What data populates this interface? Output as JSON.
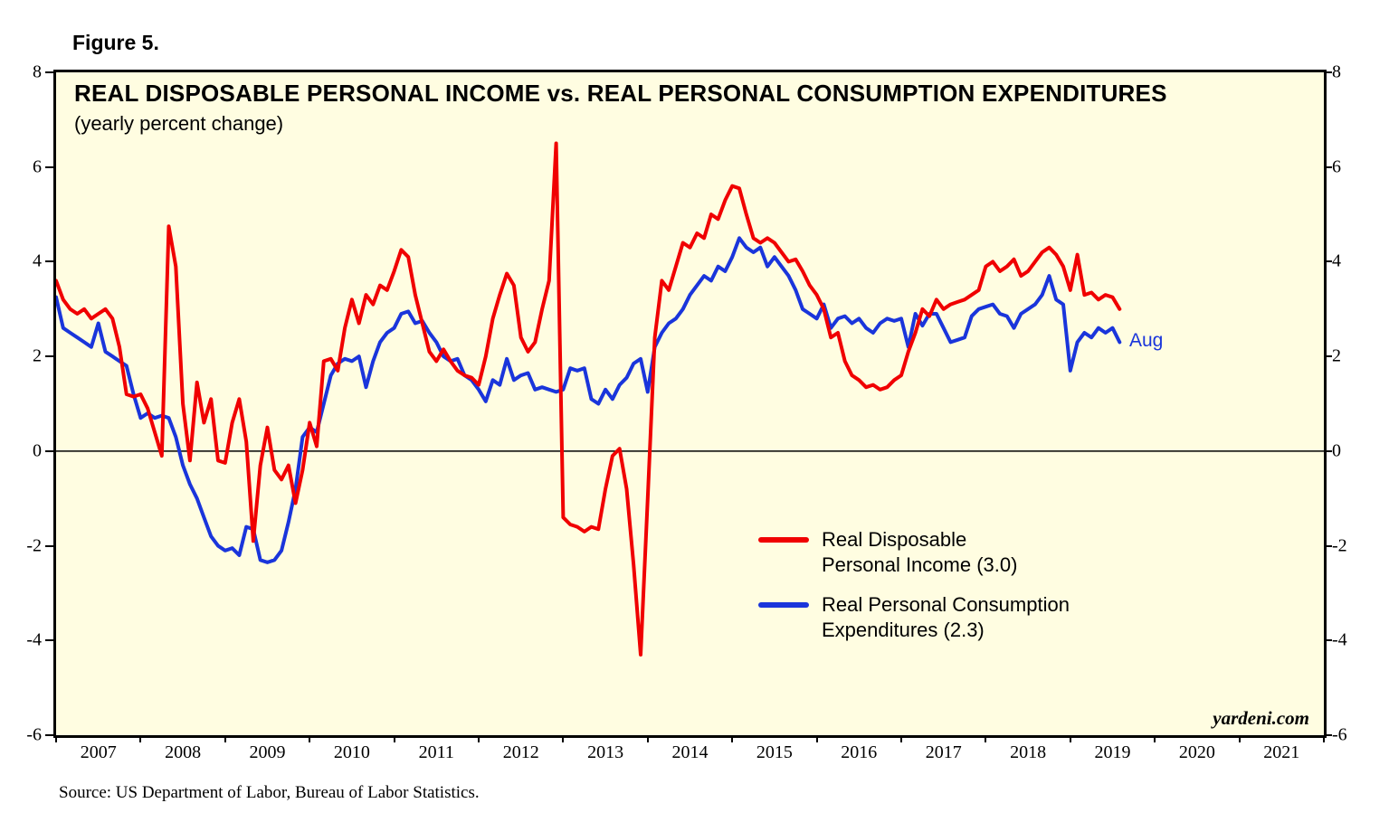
{
  "figure_label": "Figure 5.",
  "chart": {
    "title": "REAL DISPOSABLE PERSONAL INCOME vs. REAL PERSONAL CONSUMPTION EXPENDITURES",
    "subtitle": "(yearly percent change)",
    "watermark": "yardeni.com",
    "plot_background": "#fffde1",
    "annotation": {
      "text": "Aug",
      "color": "#1a35db"
    },
    "legend": [
      {
        "lines": [
          "Real Disposable",
          "Personal Income (3.0)"
        ],
        "color": "#f00000"
      },
      {
        "lines": [
          "Real Personal Consumption",
          "Expenditures (2.3)"
        ],
        "color": "#1a35db"
      }
    ]
  },
  "source": "Source: US Department of Labor, Bureau of Labor Statistics.",
  "chart_data": {
    "type": "line",
    "frequency": "monthly",
    "x_start": "2007-01",
    "x_end": "2019-08",
    "x_axis_range": [
      2007,
      2022
    ],
    "ylim": [
      -6,
      8
    ],
    "yticks": [
      8,
      6,
      4,
      2,
      0,
      -2,
      -4,
      -6
    ],
    "xtick_labels": [
      "2007",
      "2008",
      "2009",
      "2010",
      "2011",
      "2012",
      "2013",
      "2014",
      "2015",
      "2016",
      "2017",
      "2018",
      "2019",
      "2020",
      "2021"
    ],
    "zero_line": true,
    "legend_position": "inside-lower-right",
    "grid": false,
    "series": [
      {
        "name": "Real Disposable Personal Income",
        "latest_value": 3.0,
        "color": "#f00000",
        "values": [
          3.6,
          3.2,
          3.0,
          2.9,
          3.0,
          2.8,
          2.9,
          3.0,
          2.8,
          2.2,
          1.2,
          1.15,
          1.2,
          0.9,
          0.4,
          -0.1,
          4.75,
          3.9,
          1.0,
          -0.2,
          1.45,
          0.6,
          1.1,
          -0.2,
          -0.25,
          0.6,
          1.1,
          0.2,
          -1.9,
          -0.3,
          0.5,
          -0.4,
          -0.6,
          -0.3,
          -1.1,
          -0.4,
          0.6,
          0.1,
          1.9,
          1.95,
          1.7,
          2.6,
          3.2,
          2.7,
          3.3,
          3.1,
          3.5,
          3.4,
          3.8,
          4.25,
          4.1,
          3.3,
          2.7,
          2.1,
          1.9,
          2.15,
          1.9,
          1.7,
          1.6,
          1.55,
          1.4,
          2.0,
          2.8,
          3.3,
          3.75,
          3.5,
          2.4,
          2.1,
          2.3,
          3.0,
          3.6,
          6.5,
          -1.4,
          -1.55,
          -1.6,
          -1.7,
          -1.6,
          -1.65,
          -0.8,
          -0.1,
          0.05,
          -0.8,
          -2.4,
          -4.3,
          -1.0,
          2.4,
          3.6,
          3.4,
          3.9,
          4.4,
          4.3,
          4.6,
          4.5,
          5.0,
          4.9,
          5.3,
          5.6,
          5.55,
          5.0,
          4.5,
          4.4,
          4.5,
          4.4,
          4.2,
          4.0,
          4.05,
          3.8,
          3.5,
          3.3,
          3.0,
          2.4,
          2.5,
          1.9,
          1.6,
          1.5,
          1.35,
          1.4,
          1.3,
          1.35,
          1.5,
          1.6,
          2.1,
          2.5,
          3.0,
          2.85,
          3.2,
          3.0,
          3.1,
          3.15,
          3.2,
          3.3,
          3.4,
          3.9,
          4.0,
          3.8,
          3.9,
          4.05,
          3.7,
          3.8,
          4.0,
          4.2,
          4.3,
          4.15,
          3.9,
          3.4,
          4.15,
          3.3,
          3.35,
          3.2,
          3.3,
          3.25,
          3.0
        ]
      },
      {
        "name": "Real Personal Consumption Expenditures",
        "latest_value": 2.3,
        "color": "#1a35db",
        "values": [
          3.25,
          2.6,
          2.5,
          2.4,
          2.3,
          2.2,
          2.7,
          2.1,
          2.0,
          1.9,
          1.8,
          1.2,
          0.7,
          0.8,
          0.7,
          0.75,
          0.7,
          0.3,
          -0.3,
          -0.7,
          -1.0,
          -1.4,
          -1.8,
          -2.0,
          -2.1,
          -2.05,
          -2.2,
          -1.6,
          -1.65,
          -2.3,
          -2.35,
          -2.3,
          -2.1,
          -1.5,
          -0.8,
          0.3,
          0.5,
          0.4,
          1.0,
          1.6,
          1.85,
          1.95,
          1.9,
          2.0,
          1.35,
          1.9,
          2.3,
          2.5,
          2.6,
          2.9,
          2.95,
          2.7,
          2.75,
          2.5,
          2.3,
          2.0,
          1.9,
          1.95,
          1.6,
          1.5,
          1.3,
          1.05,
          1.5,
          1.4,
          1.95,
          1.5,
          1.6,
          1.65,
          1.3,
          1.35,
          1.3,
          1.25,
          1.3,
          1.75,
          1.7,
          1.75,
          1.1,
          1.0,
          1.3,
          1.1,
          1.4,
          1.55,
          1.85,
          1.95,
          1.25,
          2.2,
          2.5,
          2.7,
          2.8,
          3.0,
          3.3,
          3.5,
          3.7,
          3.6,
          3.9,
          3.8,
          4.1,
          4.5,
          4.3,
          4.2,
          4.3,
          3.9,
          4.1,
          3.9,
          3.7,
          3.4,
          3.0,
          2.9,
          2.8,
          3.1,
          2.6,
          2.8,
          2.85,
          2.7,
          2.8,
          2.6,
          2.5,
          2.7,
          2.8,
          2.75,
          2.8,
          2.2,
          2.9,
          2.65,
          2.9,
          2.9,
          2.6,
          2.3,
          2.35,
          2.4,
          2.85,
          3.0,
          3.05,
          3.1,
          2.9,
          2.85,
          2.6,
          2.9,
          3.0,
          3.1,
          3.3,
          3.7,
          3.2,
          3.1,
          1.7,
          2.3,
          2.5,
          2.4,
          2.6,
          2.5,
          2.6,
          2.3
        ]
      }
    ]
  }
}
